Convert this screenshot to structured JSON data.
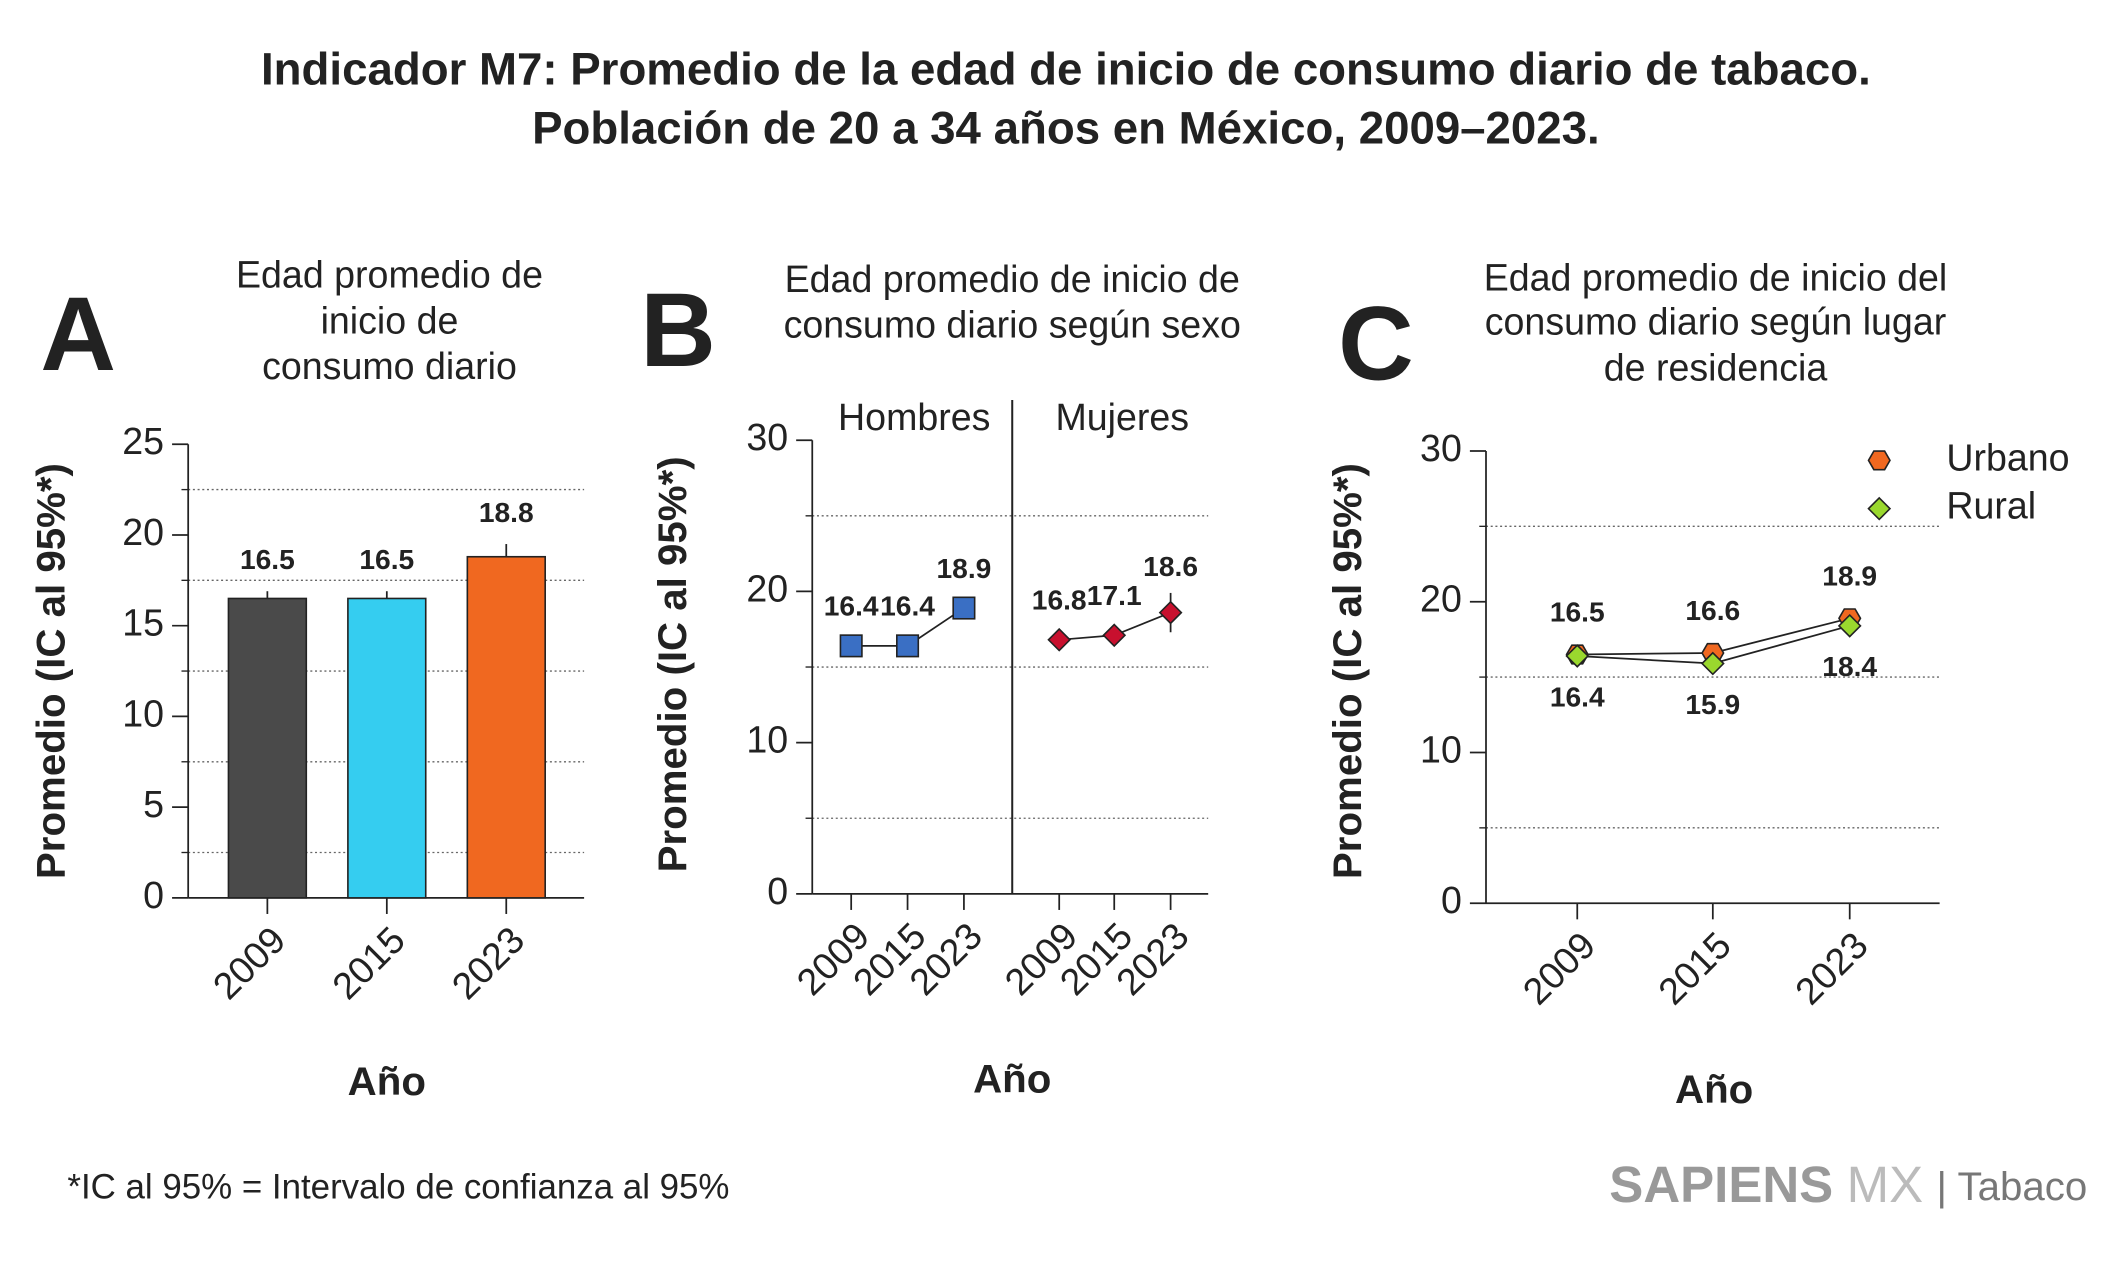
{
  "header": {
    "title": [
      "Indicador M7: Promedio de la edad de inicio de consumo diario de tabaco.",
      "Población de 20 a 34 años en México, 2009–2023."
    ]
  },
  "chart_data": [
    {
      "type": "bar",
      "panel": "A",
      "title": [
        "Edad promedio de",
        "inicio de",
        "consumo diario"
      ],
      "y_label": "Promedio (IC al 95%*)",
      "x_label": "Año",
      "categories": [
        "2009",
        "2015",
        "2023"
      ],
      "values": [
        16.5,
        16.5,
        18.8
      ],
      "errors": [
        0.4,
        0.4,
        0.7
      ],
      "colors": [
        "#4a4a4a",
        "#35cdf0",
        "#f06820"
      ],
      "ylim": [
        0,
        25
      ],
      "yticks": [
        0,
        5,
        10,
        15,
        20,
        25
      ],
      "minor_yticks": [
        2.5,
        7.5,
        12.5,
        17.5,
        22.5
      ],
      "grid": "minor-dotted"
    },
    {
      "type": "line",
      "panel": "B",
      "title": [
        "Edad promedio de inicio de",
        "consumo diario según sexo"
      ],
      "y_label": "Promedio (IC al 95%*)",
      "x_label": "Año",
      "categories": [
        "2009",
        "2015",
        "2023",
        "2009",
        "2015",
        "2023"
      ],
      "series": [
        {
          "name": "Hombres",
          "color": "#3a6fc4",
          "marker": "square",
          "values": [
            16.4,
            16.4,
            18.9,
            null,
            null,
            null
          ],
          "errors": [
            0.3,
            0.3,
            0.5,
            null,
            null,
            null
          ]
        },
        {
          "name": "Mujeres",
          "color": "#c8102e",
          "marker": "diamond",
          "values": [
            null,
            null,
            null,
            16.8,
            17.1,
            18.6
          ],
          "errors": [
            null,
            null,
            null,
            0.3,
            0.3,
            1.3
          ]
        }
      ],
      "ylim": [
        0,
        30
      ],
      "yticks": [
        0,
        10,
        20,
        30
      ],
      "minor_yticks": [
        5,
        15,
        25
      ],
      "grid": "minor-dotted",
      "legend": "above-groups"
    },
    {
      "type": "line",
      "panel": "C",
      "title": [
        "Edad promedio de inicio del",
        "consumo diario según lugar",
        "de residencia"
      ],
      "y_label": "Promedio (IC al 95%*)",
      "x_label": "Año",
      "categories": [
        "2009",
        "2015",
        "2023"
      ],
      "series": [
        {
          "name": "Urbano",
          "color": "#f06820",
          "marker": "hexagon",
          "values": [
            16.5,
            16.6,
            18.9
          ]
        },
        {
          "name": "Rural",
          "color": "#9ad82e",
          "marker": "diamond",
          "values": [
            16.4,
            15.9,
            18.4
          ]
        }
      ],
      "ylim": [
        0,
        30
      ],
      "yticks": [
        0,
        10,
        20,
        30
      ],
      "minor_yticks": [
        5,
        15,
        25
      ],
      "grid": "minor-dotted",
      "legend": "top-right"
    }
  ],
  "footnote": "*IC al 95% = Intervalo de confianza al 95%",
  "brand": {
    "name": "SAPIENS",
    "suffix": "MX",
    "section": "| Tabaco"
  }
}
